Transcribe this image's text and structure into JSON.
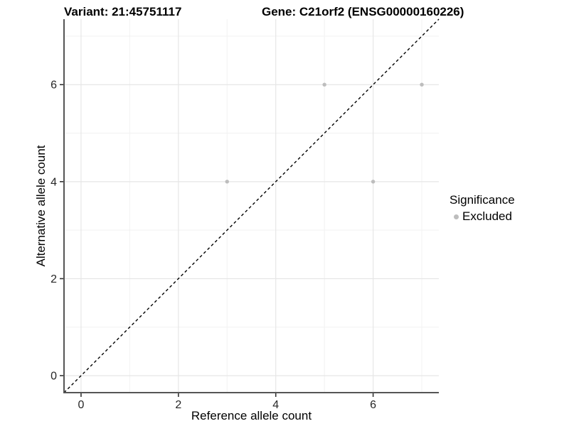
{
  "titles": {
    "variant": "Variant: 21:45751117",
    "gene": "Gene: C21orf2 (ENSG00000160226)"
  },
  "chart_data": {
    "type": "scatter",
    "xlabel": "Reference allele count",
    "ylabel": "Alternative allele count",
    "xlim": [
      -0.35,
      7.35
    ],
    "ylim": [
      -0.35,
      7.35
    ],
    "x_ticks": [
      0,
      2,
      4,
      6
    ],
    "y_ticks": [
      0,
      2,
      4,
      6
    ],
    "x_minor_gridlines": [
      1,
      3,
      5,
      7
    ],
    "y_minor_gridlines": [
      1,
      3,
      5,
      7
    ],
    "grid": true,
    "identity_line": {
      "style": "dashed",
      "slope": 1,
      "intercept": 0,
      "color": "#000000"
    },
    "series": [
      {
        "name": "Excluded",
        "color": "#bdbdbd",
        "points": [
          [
            3,
            4
          ],
          [
            5,
            6
          ],
          [
            6,
            4
          ],
          [
            7,
            6
          ]
        ]
      }
    ],
    "legend": {
      "title": "Significance",
      "position": "right",
      "entries": [
        {
          "label": "Excluded",
          "color": "#bdbdbd"
        }
      ]
    }
  },
  "colors": {
    "background": "#ffffff",
    "axis_line": "#555555",
    "tick_mark": "#333333",
    "tick_label": "#262626",
    "grid_major": "#e6e6e6",
    "grid_minor": "#f2f2f2",
    "point": "#bdbdbd"
  }
}
